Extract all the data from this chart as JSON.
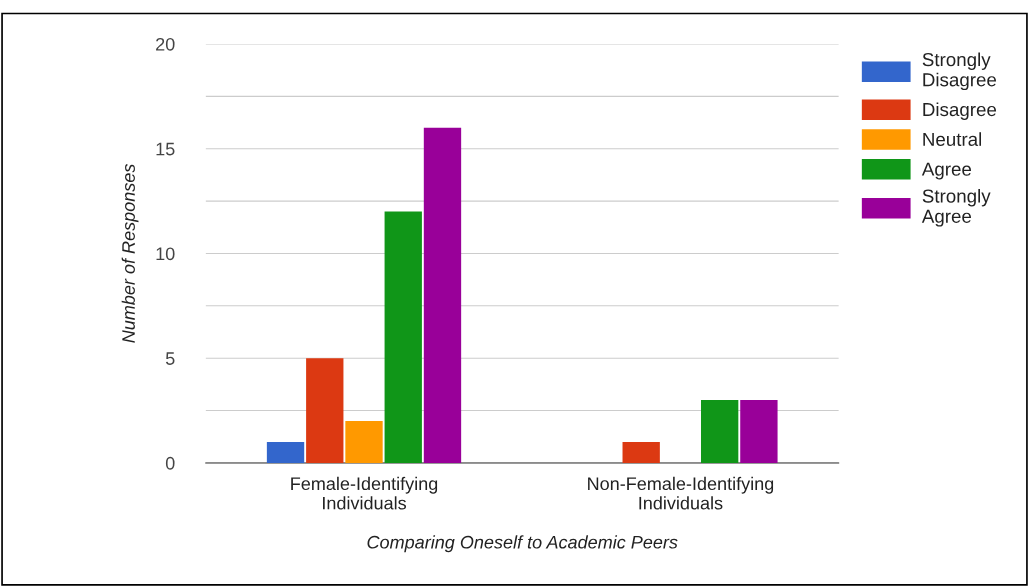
{
  "chart_data": {
    "type": "bar",
    "xlabel": "Comparing Oneself to Academic Peers",
    "ylabel": "Number of Responses",
    "categories": [
      "Female-Identifying Individuals",
      "Non-Female-Identifying Individuals"
    ],
    "series": [
      {
        "name": "Strongly Disagree",
        "color": "#3366cc",
        "values": [
          1,
          0
        ]
      },
      {
        "name": "Disagree",
        "color": "#dc3912",
        "values": [
          5,
          1
        ]
      },
      {
        "name": "Neutral",
        "color": "#ff9900",
        "values": [
          2,
          0
        ]
      },
      {
        "name": "Agree",
        "color": "#109618",
        "values": [
          12,
          3
        ]
      },
      {
        "name": "Strongly Agree",
        "color": "#990099",
        "values": [
          16,
          3
        ]
      }
    ],
    "ylim": [
      0,
      20
    ],
    "yticks": [
      0,
      {
        "value": 2.5,
        "label": null
      },
      5,
      {
        "value": 7.5,
        "label": null
      },
      10,
      {
        "value": 12.5,
        "label": null
      },
      15,
      {
        "value": 17.5,
        "label": null
      },
      20
    ],
    "grid": "y",
    "legend": "right"
  }
}
